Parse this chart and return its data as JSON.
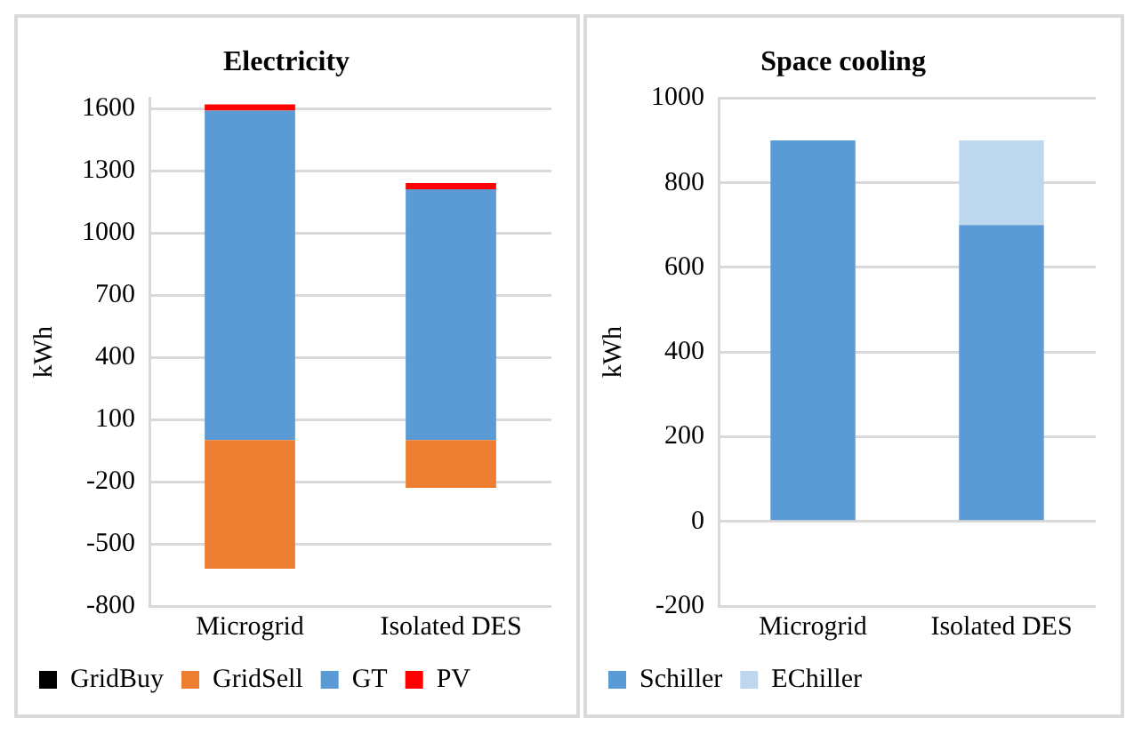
{
  "chart_data": [
    {
      "type": "bar",
      "title": "Electricity",
      "ylabel": "kWh",
      "categories": [
        "Microgrid",
        "Isolated DES"
      ],
      "stacked": true,
      "series": [
        {
          "name": "GridBuy",
          "color": "#000000",
          "values": [
            0,
            0
          ]
        },
        {
          "name": "GridSell",
          "color": "#ed7d31",
          "values": [
            -620,
            -230
          ]
        },
        {
          "name": "GT",
          "color": "#5b9bd5",
          "values": [
            1590,
            1210
          ]
        },
        {
          "name": "PV",
          "color": "#ff0000",
          "values": [
            30,
            30
          ]
        }
      ],
      "ylim": [
        -800,
        1650
      ],
      "yticks": [
        -800,
        -500,
        -200,
        100,
        400,
        700,
        1000,
        1300,
        1600
      ],
      "grid": "y",
      "legend": "bottom"
    },
    {
      "type": "bar",
      "title": "Space cooling",
      "ylabel": "kWh",
      "categories": [
        "Microgrid",
        "Isolated DES"
      ],
      "stacked": true,
      "series": [
        {
          "name": "Schiller",
          "color": "#5b9bd5",
          "values": [
            900,
            700
          ]
        },
        {
          "name": "EChiller",
          "color": "#bdd7ee",
          "values": [
            0,
            200
          ]
        }
      ],
      "ylim": [
        -200,
        1000
      ],
      "yticks": [
        -200,
        0,
        200,
        400,
        600,
        800,
        1000
      ],
      "grid": "y",
      "legend": "bottom"
    }
  ]
}
